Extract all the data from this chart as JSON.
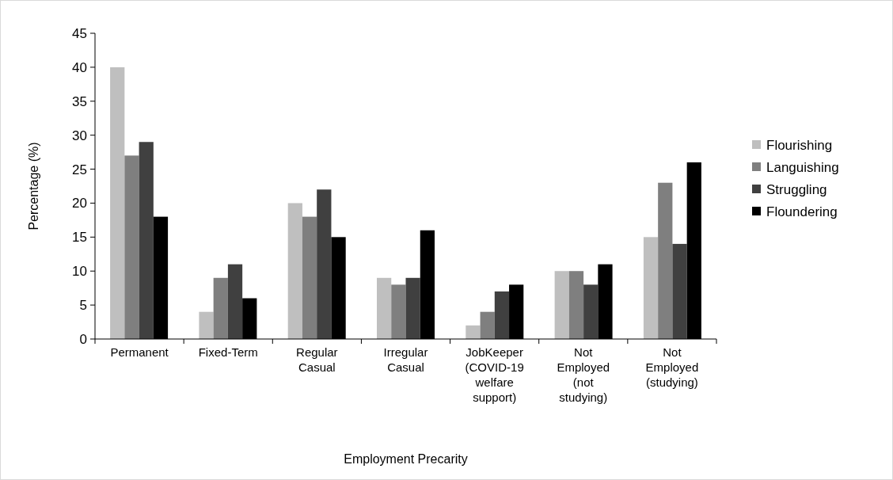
{
  "chart_data": {
    "type": "bar",
    "xlabel": "Employment Precarity",
    "ylabel": "Percentage (%)",
    "categories": [
      "Permanent",
      "Fixed-Term",
      "Regular Casual",
      "Irregular Casual",
      "JobKeeper (COVID-19 welfare support)",
      "Not Employed (not studying)",
      "Not Employed (studying)"
    ],
    "series": [
      {
        "name": "Flourishing",
        "color": "#bfbfbf",
        "values": [
          40,
          4,
          20,
          9,
          2,
          10,
          15
        ]
      },
      {
        "name": "Languishing",
        "color": "#7f7f7f",
        "values": [
          27,
          9,
          18,
          8,
          4,
          10,
          23
        ]
      },
      {
        "name": "Struggling",
        "color": "#404040",
        "values": [
          29,
          11,
          22,
          9,
          7,
          8,
          14
        ]
      },
      {
        "name": "Floundering",
        "color": "#000000",
        "values": [
          18,
          6,
          15,
          16,
          8,
          11,
          26
        ]
      }
    ],
    "ylim": [
      0,
      45
    ],
    "yticks": [
      0,
      5,
      10,
      15,
      20,
      25,
      30,
      35,
      40,
      45
    ],
    "grid": false,
    "legend": "right"
  }
}
